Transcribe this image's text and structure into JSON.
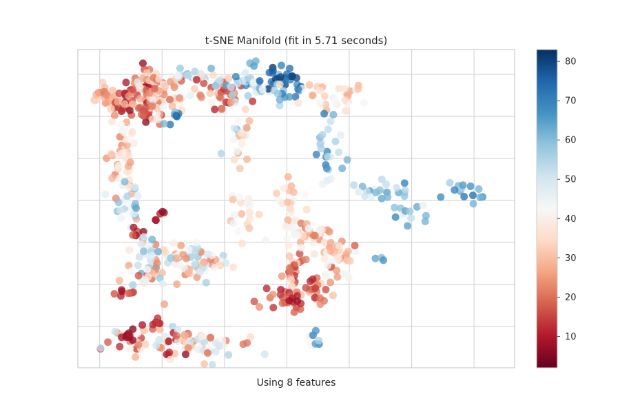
{
  "chart_data": {
    "type": "scatter",
    "title": "t-SNE Manifold (fit in 5.71 seconds)",
    "xlabel": "Using 8 features",
    "ylabel": "",
    "x_ticks_shown": false,
    "y_ticks_shown": false,
    "grid": true,
    "colorbar": {
      "colormap": "RdBu",
      "range": [
        2,
        83
      ],
      "ticks": [
        10,
        20,
        30,
        40,
        50,
        60,
        70,
        80
      ],
      "low_color": "#67001f",
      "mid_color": "#f7f7f7",
      "high_color": "#053061"
    },
    "point_color_field": "value",
    "clusters": [
      {
        "cx": -58,
        "cy": 52,
        "sx": 1.8,
        "sy": 2.5,
        "n": 18,
        "vmin": 20,
        "vmax": 35
      },
      {
        "cx": -48,
        "cy": 50,
        "sx": 4.5,
        "sy": 4.5,
        "n": 70,
        "vmin": 5,
        "vmax": 30
      },
      {
        "cx": -40,
        "cy": 53,
        "sx": 4.5,
        "sy": 5,
        "n": 60,
        "vmin": 15,
        "vmax": 48
      },
      {
        "cx": -30,
        "cy": 59,
        "sx": 3,
        "sy": 2,
        "n": 18,
        "vmin": 40,
        "vmax": 60
      },
      {
        "cx": -37,
        "cy": 44,
        "sx": 1.5,
        "sy": 1.2,
        "n": 8,
        "vmin": 55,
        "vmax": 75
      },
      {
        "cx": -22,
        "cy": 53,
        "sx": 5,
        "sy": 3,
        "n": 35,
        "vmin": 10,
        "vmax": 42
      },
      {
        "cx": -12,
        "cy": 56,
        "sx": 6,
        "sy": 3,
        "n": 40,
        "vmin": 40,
        "vmax": 70
      },
      {
        "cx": 0,
        "cy": 58,
        "sx": 3,
        "sy": 2,
        "n": 25,
        "vmin": 70,
        "vmax": 83
      },
      {
        "cx": 0,
        "cy": 52,
        "sx": 2.5,
        "sy": 2,
        "n": 14,
        "vmin": 40,
        "vmax": 72
      },
      {
        "cx": 15,
        "cy": 51,
        "sx": 6,
        "sy": 3,
        "n": 30,
        "vmin": 25,
        "vmax": 45
      },
      {
        "cx": 14,
        "cy": 31,
        "sx": 3,
        "sy": 5,
        "n": 25,
        "vmin": 45,
        "vmax": 72
      },
      {
        "cx": -16,
        "cy": 35,
        "sx": 2,
        "sy": 4,
        "n": 18,
        "vmin": 25,
        "vmax": 65
      },
      {
        "cx": -53,
        "cy": 28,
        "sx": 3,
        "sy": 10,
        "n": 45,
        "vmin": 20,
        "vmax": 48
      },
      {
        "cx": -50,
        "cy": 12,
        "sx": 2.5,
        "sy": 3,
        "n": 20,
        "vmin": 40,
        "vmax": 65
      },
      {
        "cx": -41,
        "cy": 8,
        "sx": 1,
        "sy": 1,
        "n": 5,
        "vmin": 5,
        "vmax": 12
      },
      {
        "cx": -14,
        "cy": 10,
        "sx": 2.5,
        "sy": 5,
        "n": 20,
        "vmin": 28,
        "vmax": 45
      },
      {
        "cx": 0,
        "cy": 12,
        "sx": 2,
        "sy": 5,
        "n": 20,
        "vmin": 28,
        "vmax": 45
      },
      {
        "cx": 29,
        "cy": 17,
        "sx": 6,
        "sy": 2,
        "n": 22,
        "vmin": 45,
        "vmax": 70
      },
      {
        "cx": 40,
        "cy": 9,
        "sx": 2.5,
        "sy": 3,
        "n": 12,
        "vmin": 45,
        "vmax": 70
      },
      {
        "cx": 57,
        "cy": 17,
        "sx": 3,
        "sy": 2,
        "n": 14,
        "vmin": 55,
        "vmax": 75
      },
      {
        "cx": -43,
        "cy": -12,
        "sx": 4,
        "sy": 5,
        "n": 45,
        "vmin": 15,
        "vmax": 65
      },
      {
        "cx": -30,
        "cy": -8,
        "sx": 6,
        "sy": 3,
        "n": 60,
        "vmin": 20,
        "vmax": 60
      },
      {
        "cx": -52,
        "cy": -20,
        "sx": 1.5,
        "sy": 1.2,
        "n": 8,
        "vmin": 8,
        "vmax": 20
      },
      {
        "cx": -35,
        "cy": -38,
        "sx": 12,
        "sy": 3,
        "n": 90,
        "vmin": 5,
        "vmax": 55
      },
      {
        "cx": -51,
        "cy": -36,
        "sx": 1.5,
        "sy": 1.2,
        "n": 8,
        "vmin": 5,
        "vmax": 12
      },
      {
        "cx": -43,
        "cy": -30,
        "sx": 1.5,
        "sy": 1.2,
        "n": 7,
        "vmin": 5,
        "vmax": 15
      },
      {
        "cx": 2,
        "cy": -12,
        "sx": 2,
        "sy": 5,
        "n": 25,
        "vmin": 10,
        "vmax": 35
      },
      {
        "cx": 7,
        "cy": 0,
        "sx": 5,
        "sy": 3,
        "n": 35,
        "vmin": 20,
        "vmax": 45
      },
      {
        "cx": 10,
        "cy": -18,
        "sx": 3,
        "sy": 3,
        "n": 30,
        "vmin": 10,
        "vmax": 40
      },
      {
        "cx": 17,
        "cy": -8,
        "sx": 3,
        "sy": 4,
        "n": 30,
        "vmin": 15,
        "vmax": 50
      },
      {
        "cx": -2,
        "cy": -22,
        "sx": 4,
        "sy": 2,
        "n": 25,
        "vmin": 5,
        "vmax": 25
      },
      {
        "cx": 1,
        "cy": 3,
        "sx": 1.5,
        "sy": 1.5,
        "n": 6,
        "vmin": 40,
        "vmax": 45
      },
      {
        "cx": 9,
        "cy": -37,
        "sx": 1.2,
        "sy": 2,
        "n": 8,
        "vmin": 40,
        "vmax": 70
      },
      {
        "cx": 31,
        "cy": -6,
        "sx": 1.5,
        "sy": 1.5,
        "n": 3,
        "vmin": 55,
        "vmax": 70
      },
      {
        "cx": -48,
        "cy": 3,
        "sx": 1.5,
        "sy": 1.5,
        "n": 6,
        "vmin": 5,
        "vmax": 20
      },
      {
        "cx": -44,
        "cy": -4,
        "sx": 2,
        "sy": 2,
        "n": 10,
        "vmin": 45,
        "vmax": 65
      }
    ]
  }
}
